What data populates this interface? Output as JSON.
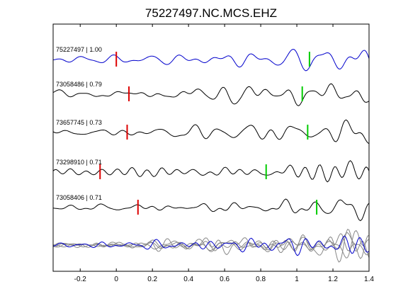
{
  "chart_data": {
    "type": "line",
    "title": "75227497.NC.MCS.EHZ",
    "xlabel": "",
    "ylabel": "",
    "xlim": [
      -0.35,
      1.4
    ],
    "x_ticks": [
      -0.2,
      0,
      0.2,
      0.4,
      0.6,
      0.8,
      1,
      1.2,
      1.4
    ],
    "x_tick_labels": [
      "-0.2",
      "0",
      "0.2",
      "0.4",
      "0.6",
      "0.8",
      "1",
      "1.2",
      "1.4"
    ],
    "grid": false,
    "traces": [
      {
        "label": "75227497 | 1.00",
        "color": "#0000cc",
        "p_pick": 0.0,
        "s_pick": 1.07
      },
      {
        "label": "73058486 | 0.79",
        "color": "#000000",
        "p_pick": 0.07,
        "s_pick": 1.03
      },
      {
        "label": "73657745 | 0.73",
        "color": "#000000",
        "p_pick": 0.06,
        "s_pick": 1.06
      },
      {
        "label": "73298910 | 0.71",
        "color": "#000000",
        "p_pick": -0.09,
        "s_pick": 0.83
      },
      {
        "label": "73058406 | 0.71",
        "color": "#000000",
        "p_pick": 0.12,
        "s_pick": 1.11
      }
    ],
    "stack": {
      "colors": [
        "#0000cc",
        "#888888",
        "#888888",
        "#888888",
        "#888888"
      ]
    },
    "p_pick_color": "#dd0000",
    "s_pick_color": "#00cc00"
  }
}
